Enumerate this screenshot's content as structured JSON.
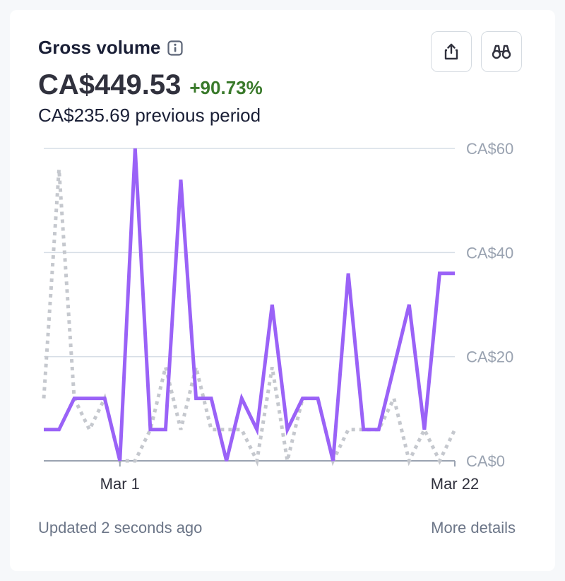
{
  "header": {
    "title": "Gross volume",
    "info_icon": "info-icon",
    "amount": "CA$449.53",
    "delta": "+90.73%",
    "previous": "CA$235.69 previous period"
  },
  "actions": {
    "export_icon": "share-export-icon",
    "explore_icon": "binoculars-icon"
  },
  "footer": {
    "updated": "Updated 2 seconds ago",
    "more_details": "More details"
  },
  "colors": {
    "current": "#9a62f7",
    "previous": "#c5c8ce",
    "grid": "#d5dde5",
    "tick_text": "#9aa3b1",
    "delta": "#3a7a2b"
  },
  "chart_data": {
    "type": "line",
    "x_ticks": [
      "Mar 1",
      "Mar 22"
    ],
    "y_ticks": [
      "CA$0",
      "CA$20",
      "CA$40",
      "CA$60"
    ],
    "ylim": [
      0,
      60
    ],
    "grid": true,
    "series": [
      {
        "style": "solid",
        "values": [
          6,
          6,
          12,
          12,
          12,
          0,
          60,
          6,
          6,
          54,
          12,
          12,
          0,
          12,
          6,
          30,
          6,
          12,
          12,
          0,
          36,
          6,
          6,
          18,
          30,
          6,
          36,
          36
        ]
      },
      {
        "style": "dotted",
        "values": [
          12,
          56,
          12,
          6,
          12,
          0,
          0,
          6,
          18,
          6,
          18,
          6,
          6,
          6,
          0,
          18,
          0,
          12,
          12,
          0,
          6,
          6,
          6,
          12,
          0,
          6,
          0,
          6
        ]
      }
    ]
  }
}
